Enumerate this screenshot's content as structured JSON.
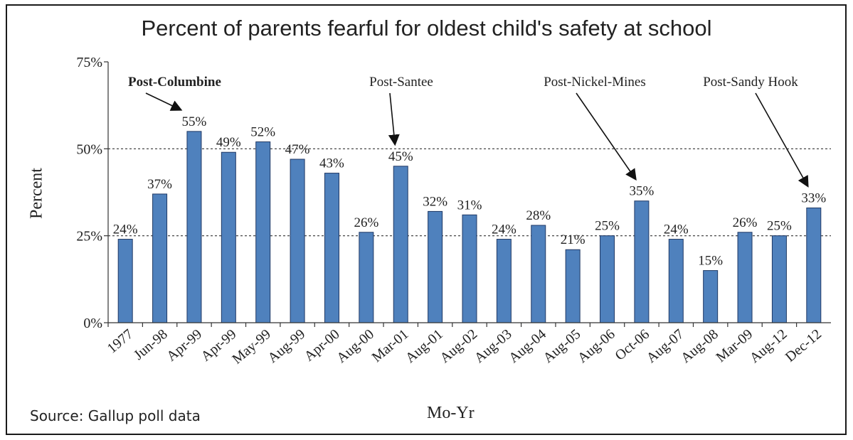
{
  "chart_data": {
    "type": "bar",
    "title": "Percent of parents fearful for oldest child's safety at school",
    "xlabel": "Mo-Yr",
    "ylabel": "Percent",
    "source": "Source: Gallup poll data",
    "categories": [
      "1977",
      "Jun-98",
      "Apr-99",
      "Apr-99",
      "May-99",
      "Aug-99",
      "Apr-00",
      "Aug-00",
      "Mar-01",
      "Aug-01",
      "Aug-02",
      "Aug-03",
      "Aug-04",
      "Aug-05",
      "Aug-06",
      "Oct-06",
      "Aug-07",
      "Aug-08",
      "Mar-09",
      "Aug-12",
      "Dec-12"
    ],
    "values": [
      24,
      37,
      55,
      49,
      52,
      47,
      43,
      26,
      45,
      32,
      31,
      24,
      28,
      21,
      25,
      35,
      24,
      15,
      26,
      25,
      33
    ],
    "data_labels": [
      "24%",
      "37%",
      "55%",
      "49%",
      "52%",
      "47%",
      "43%",
      "26%",
      "45%",
      "32%",
      "31%",
      "24%",
      "28%",
      "21%",
      "25%",
      "35%",
      "24%",
      "15%",
      "26%",
      "25%",
      "33%"
    ],
    "ylim": [
      0,
      75
    ],
    "yticks": [
      0,
      25,
      50,
      75
    ],
    "ytick_labels": [
      "0%",
      "25%",
      "50%",
      "75%"
    ],
    "reference_lines": [
      25,
      50
    ],
    "bar_color": "#4f81bd",
    "bar_edge_color": "#1f3864",
    "annotations": [
      {
        "text": "Post-Columbine",
        "target_index": 2,
        "bold": true
      },
      {
        "text": "Post-Santee",
        "target_index": 8,
        "bold": false
      },
      {
        "text": "Post-Nickel-Mines",
        "target_index": 15,
        "bold": false
      },
      {
        "text": "Post-Sandy Hook",
        "target_index": 20,
        "bold": false
      }
    ]
  }
}
